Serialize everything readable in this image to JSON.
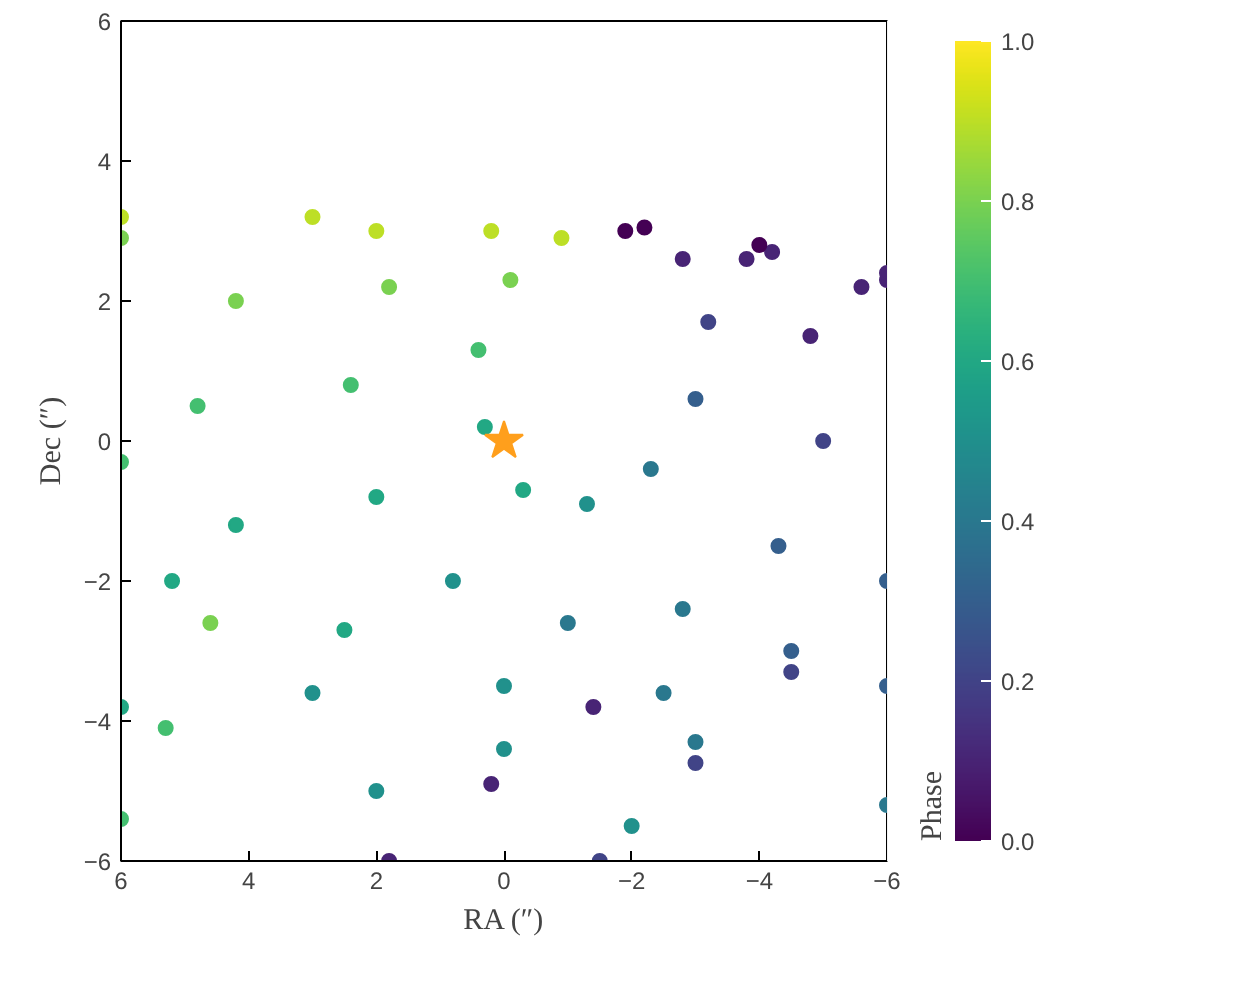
{
  "chart_data": {
    "type": "scatter",
    "xlabel": "RA (″)",
    "ylabel": "Dec (″)",
    "clabel": "Phase",
    "xlim": [
      6,
      -6
    ],
    "ylim": [
      -6,
      6
    ],
    "xticks": [
      {
        "value": 6,
        "label": "6"
      },
      {
        "value": 4,
        "label": "4"
      },
      {
        "value": 2,
        "label": "2"
      },
      {
        "value": 0,
        "label": "0"
      },
      {
        "value": -2,
        "label": "−2"
      },
      {
        "value": -4,
        "label": "−4"
      },
      {
        "value": -6,
        "label": "−6"
      }
    ],
    "yticks": [
      {
        "value": -6,
        "label": "−6"
      },
      {
        "value": -4,
        "label": "−4"
      },
      {
        "value": -2,
        "label": "−2"
      },
      {
        "value": 0,
        "label": "0"
      },
      {
        "value": 2,
        "label": "2"
      },
      {
        "value": 4,
        "label": "4"
      },
      {
        "value": 6,
        "label": "6"
      }
    ],
    "clim": [
      0,
      1
    ],
    "cticks": [
      {
        "value": 0,
        "label": "0.0"
      },
      {
        "value": 0.2,
        "label": "0.2"
      },
      {
        "value": 0.4,
        "label": "0.4"
      },
      {
        "value": 0.6,
        "label": "0.6"
      },
      {
        "value": 0.8,
        "label": "0.8"
      },
      {
        "value": 1,
        "label": "1.0"
      }
    ],
    "marker": "circle",
    "series": [
      {
        "x": [
          -1.9,
          -2.8,
          -3.2,
          -3.0,
          -2.3,
          -1.3,
          -0.3,
          0.3,
          0.4,
          -0.1,
          -0.9
        ],
        "values": [
          3.0,
          2.6,
          1.7,
          0.6,
          -0.4,
          -0.9,
          -0.7,
          0.2,
          1.3,
          2.3,
          2.9
        ],
        "colors": [
          "#440154",
          "#482475",
          "#414487",
          "#355f8d",
          "#2a788e",
          "#21918c",
          "#22a884",
          "#22a884",
          "#44bf70",
          "#7ad151",
          "#bddf26"
        ]
      },
      {
        "x": [
          -2.2,
          -3.8,
          -4.8,
          -5.0,
          -4.3,
          -2.8,
          -1.0,
          0.8,
          2.0,
          2.4,
          1.8,
          0.2
        ],
        "values": [
          3.05,
          2.6,
          1.5,
          0.0,
          -1.5,
          -2.4,
          -2.6,
          -2.0,
          -0.8,
          0.8,
          2.2,
          3.0
        ],
        "colors": [
          "#440154",
          "#482475",
          "#482475",
          "#414487",
          "#355f8d",
          "#2a788e",
          "#2a788e",
          "#21918c",
          "#22a884",
          "#44bf70",
          "#7ad151",
          "#bddf26"
        ]
      },
      {
        "x": [
          -4.2,
          -5.6,
          -6.0,
          -4.5,
          -2.5,
          0.0,
          2.5,
          4.2,
          4.8,
          4.2,
          2.0
        ],
        "values": [
          2.7,
          2.2,
          -2.0,
          -3.0,
          -3.6,
          -3.5,
          -2.7,
          -1.2,
          0.5,
          2.0,
          3.0
        ],
        "colors": [
          "#482475",
          "#482475",
          "#355f8d",
          "#355f8d",
          "#2a788e",
          "#21918c",
          "#22a884",
          "#22a884",
          "#44bf70",
          "#7ad151",
          "#bddf26"
        ]
      },
      {
        "x": [
          -4.0,
          -6.0,
          -6.0,
          -3.0,
          0.0,
          3.0,
          5.2,
          6.0,
          6.0,
          3.0
        ],
        "values": [
          2.8,
          2.3,
          -3.5,
          -4.3,
          -4.4,
          -3.6,
          -2.0,
          -0.3,
          2.9,
          3.2
        ],
        "colors": [
          "#440154",
          "#482475",
          "#355f8d",
          "#2a788e",
          "#21918c",
          "#21918c",
          "#22a884",
          "#44bf70",
          "#7ad151",
          "#bddf26"
        ]
      },
      {
        "x": [
          -6.0,
          -6.0,
          -2.0,
          2.0,
          6.0,
          6.0
        ],
        "values": [
          2.4,
          -5.2,
          -5.5,
          -5.0,
          -3.8,
          3.2
        ],
        "colors": [
          "#482475",
          "#2a788e",
          "#21918c",
          "#21918c",
          "#22a884",
          "#bddf26"
        ]
      },
      {
        "x": [
          1.8,
          0.2,
          -1.4,
          6.0,
          5.3,
          4.6,
          -1.5,
          -3.0,
          -4.5
        ],
        "values": [
          -6.0,
          -4.9,
          -3.8,
          -5.4,
          -4.1,
          -2.6,
          -6.0,
          -4.6,
          -3.3
        ],
        "colors": [
          "#482475",
          "#482475",
          "#482475",
          "#44bf70",
          "#44bf70",
          "#7ad151",
          "#414487",
          "#414487",
          "#414487"
        ]
      },
      {
        "marker": "star",
        "color": "#ff9f1c",
        "x": [
          0
        ],
        "values": [
          0
        ]
      }
    ]
  }
}
